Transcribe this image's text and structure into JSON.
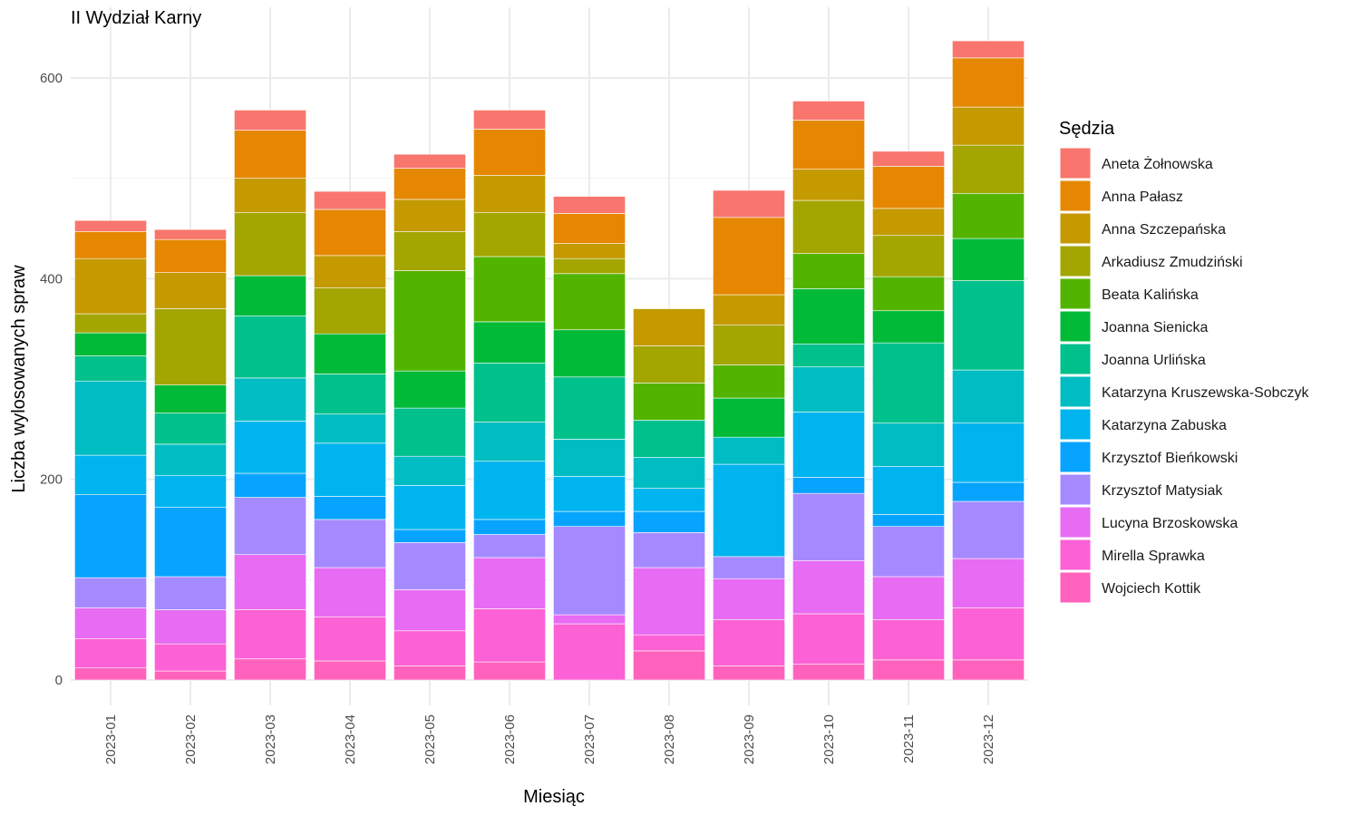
{
  "chart_data": {
    "type": "bar",
    "stacked": true,
    "title": "II Wydział Karny",
    "xlabel": "Miesiąc",
    "ylabel": "Liczba wylosowanych spraw",
    "ylim": [
      0,
      640
    ],
    "yticks": [
      0,
      200,
      400,
      600
    ],
    "grid": true,
    "legend_title": "Sędzia",
    "legend_position": "right",
    "categories": [
      "2023-01",
      "2023-02",
      "2023-03",
      "2023-04",
      "2023-05",
      "2023-06",
      "2023-07",
      "2023-08",
      "2023-09",
      "2023-10",
      "2023-11",
      "2023-12"
    ],
    "series": [
      {
        "name": "Wojciech Kottik",
        "color": "#FF62BC",
        "values": [
          12,
          9,
          21,
          19,
          14,
          18,
          0,
          29,
          14,
          16,
          20,
          20
        ]
      },
      {
        "name": "Mirella Sprawka",
        "color": "#FC61D5",
        "values": [
          29,
          27,
          49,
          44,
          35,
          53,
          56,
          16,
          46,
          50,
          40,
          52
        ]
      },
      {
        "name": "Lucyna Brzoskowska",
        "color": "#E76BF3",
        "values": [
          31,
          34,
          55,
          49,
          41,
          51,
          9,
          67,
          41,
          53,
          43,
          49
        ]
      },
      {
        "name": "Krzysztof Matysiak",
        "color": "#A58AFF",
        "values": [
          30,
          33,
          57,
          48,
          47,
          23,
          88,
          35,
          22,
          67,
          50,
          57
        ]
      },
      {
        "name": "Krzysztof Bieńkowski",
        "color": "#06A4FF",
        "values": [
          83,
          69,
          24,
          23,
          13,
          15,
          15,
          21,
          0,
          16,
          12,
          19
        ]
      },
      {
        "name": "Katarzyna Zabuska",
        "color": "#00B4EF",
        "values": [
          39,
          32,
          52,
          53,
          44,
          58,
          35,
          23,
          92,
          65,
          48,
          59
        ]
      },
      {
        "name": "Katarzyna Kruszewska-Sobczyk",
        "color": "#00BDC3",
        "values": [
          74,
          31,
          43,
          29,
          29,
          39,
          37,
          31,
          27,
          45,
          43,
          53
        ]
      },
      {
        "name": "Joanna Urlińska",
        "color": "#00C08B",
        "values": [
          25,
          31,
          62,
          40,
          48,
          59,
          62,
          37,
          0,
          23,
          80,
          89
        ]
      },
      {
        "name": "Joanna Sienicka",
        "color": "#00BA38",
        "values": [
          23,
          28,
          40,
          40,
          37,
          41,
          47,
          0,
          39,
          55,
          32,
          42
        ]
      },
      {
        "name": "Beata Kalińska",
        "color": "#53B400",
        "values": [
          0,
          0,
          0,
          0,
          100,
          65,
          56,
          37,
          33,
          35,
          34,
          45
        ]
      },
      {
        "name": "Arkadiusz Zmudziński",
        "color": "#A3A500",
        "values": [
          19,
          76,
          63,
          46,
          39,
          44,
          15,
          37,
          40,
          53,
          41,
          48
        ]
      },
      {
        "name": "Anna Szczepańska",
        "color": "#C49A00",
        "values": [
          55,
          36,
          34,
          32,
          32,
          37,
          15,
          37,
          30,
          31,
          27,
          38
        ]
      },
      {
        "name": "Anna Pałasz",
        "color": "#E58700",
        "values": [
          27,
          33,
          48,
          46,
          31,
          46,
          30,
          0,
          77,
          49,
          42,
          49
        ]
      },
      {
        "name": "Aneta Żołnowska",
        "color": "#F8766D",
        "values": [
          11,
          10,
          20,
          18,
          14,
          19,
          17,
          0,
          27,
          19,
          15,
          17
        ]
      }
    ]
  }
}
